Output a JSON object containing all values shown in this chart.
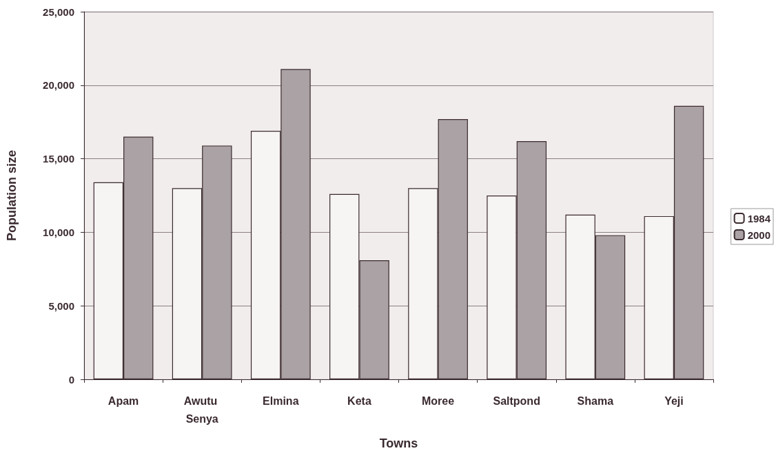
{
  "chart_data": {
    "type": "bar",
    "xlabel": "Towns",
    "ylabel": "Population size",
    "categories": [
      "Apam",
      "Awutu Senya",
      "Elmina",
      "Keta",
      "Moree",
      "Saltpond",
      "Shama",
      "Yeji"
    ],
    "series": [
      {
        "name": "1984",
        "color": "#f7f4f4",
        "values": [
          13400,
          13000,
          16900,
          12600,
          13000,
          12500,
          11200,
          11100
        ]
      },
      {
        "name": "2000",
        "color": "#aaa2a4",
        "values": [
          16500,
          15900,
          21100,
          8100,
          17700,
          16200,
          9800,
          18600
        ]
      }
    ],
    "ylim": [
      0,
      25000
    ],
    "yticks": [
      {
        "value": 0,
        "label": "0"
      },
      {
        "value": 5000,
        "label": "5,000"
      },
      {
        "value": 10000,
        "label": "10,000"
      },
      {
        "value": 15000,
        "label": "15,000"
      },
      {
        "value": 20000,
        "label": "20,000"
      },
      {
        "value": 25000,
        "label": "25,000"
      }
    ],
    "grid": "y",
    "legend": "right"
  }
}
